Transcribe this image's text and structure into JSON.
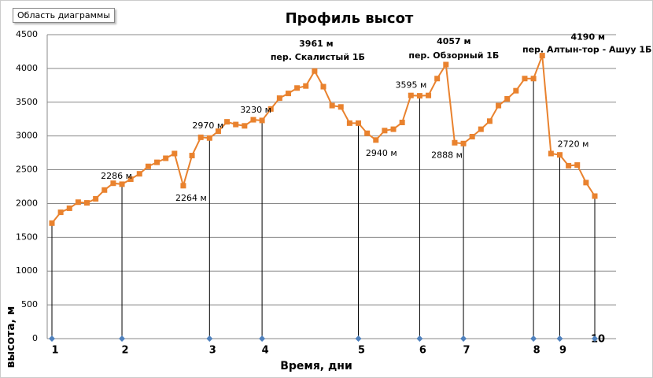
{
  "tooltip": "Область диаграммы",
  "chart_data": {
    "type": "line",
    "title": "Профиль высот",
    "x_label": "Время, дни",
    "y_label": "высота, м",
    "categories": [
      "1",
      null,
      null,
      null,
      null,
      null,
      null,
      null,
      "2",
      null,
      null,
      null,
      null,
      null,
      null,
      null,
      null,
      null,
      "3",
      null,
      null,
      null,
      null,
      null,
      "4",
      null,
      null,
      null,
      null,
      null,
      null,
      null,
      null,
      null,
      null,
      "5",
      null,
      null,
      null,
      null,
      null,
      null,
      "6",
      null,
      null,
      null,
      null,
      "7",
      null,
      null,
      null,
      null,
      null,
      null,
      null,
      "8",
      null,
      null,
      "9",
      null,
      null,
      null,
      "10"
    ],
    "series": [
      {
        "color": "#E9822E",
        "marker": "square",
        "drop_lines": true,
        "values": [
          1710,
          1870,
          1930,
          2020,
          2010,
          2070,
          2200,
          2300,
          2286,
          2360,
          2440,
          2550,
          2610,
          2670,
          2740,
          2264,
          2710,
          2980,
          2970,
          3070,
          3210,
          3170,
          3150,
          3240,
          3230,
          3400,
          3560,
          3630,
          3710,
          3740,
          3961,
          3730,
          3450,
          3430,
          3190,
          3190,
          3040,
          2940,
          3080,
          3100,
          3200,
          3600,
          3595,
          3600,
          3850,
          4057,
          2900,
          2888,
          2990,
          3100,
          3220,
          3450,
          3550,
          3670,
          3850,
          3850,
          4190,
          2740,
          2720,
          2560,
          2570,
          2310,
          2110
        ],
        "value_labels": [
          null,
          null,
          null,
          null,
          null,
          null,
          null,
          null,
          "2286 м",
          null,
          null,
          null,
          null,
          null,
          null,
          "2264 м",
          null,
          null,
          "2970 м",
          null,
          null,
          null,
          null,
          null,
          "3230 м",
          null,
          null,
          null,
          null,
          null,
          "3961 м",
          null,
          null,
          null,
          null,
          null,
          null,
          "2940 м",
          null,
          null,
          null,
          null,
          "3595 м",
          null,
          null,
          "4057 м",
          null,
          "2888 м",
          null,
          null,
          null,
          null,
          null,
          null,
          null,
          null,
          "4190 м",
          null,
          "2720 м",
          null,
          null,
          null,
          null
        ]
      },
      {
        "color": "#4F81BD",
        "marker": "diamond",
        "values": [
          0,
          null,
          null,
          null,
          null,
          null,
          null,
          null,
          0,
          null,
          null,
          null,
          null,
          null,
          null,
          null,
          null,
          null,
          0,
          null,
          null,
          null,
          null,
          null,
          0,
          null,
          null,
          null,
          null,
          null,
          null,
          null,
          null,
          null,
          null,
          0,
          null,
          null,
          null,
          null,
          null,
          null,
          0,
          null,
          null,
          null,
          null,
          0,
          null,
          null,
          null,
          null,
          null,
          null,
          null,
          0,
          null,
          null,
          0,
          null,
          null,
          null,
          0
        ]
      }
    ],
    "annotations": [
      "пер. Скалистый  1Б",
      "пер. Обзорный 1Б",
      "пер. Алтын-тор -  Ашуу 1Б"
    ],
    "ylim": [
      0,
      4500
    ],
    "yticks": [
      0,
      500,
      1000,
      1500,
      2000,
      2500,
      3000,
      3500,
      4000,
      4500
    ],
    "grid": true
  }
}
